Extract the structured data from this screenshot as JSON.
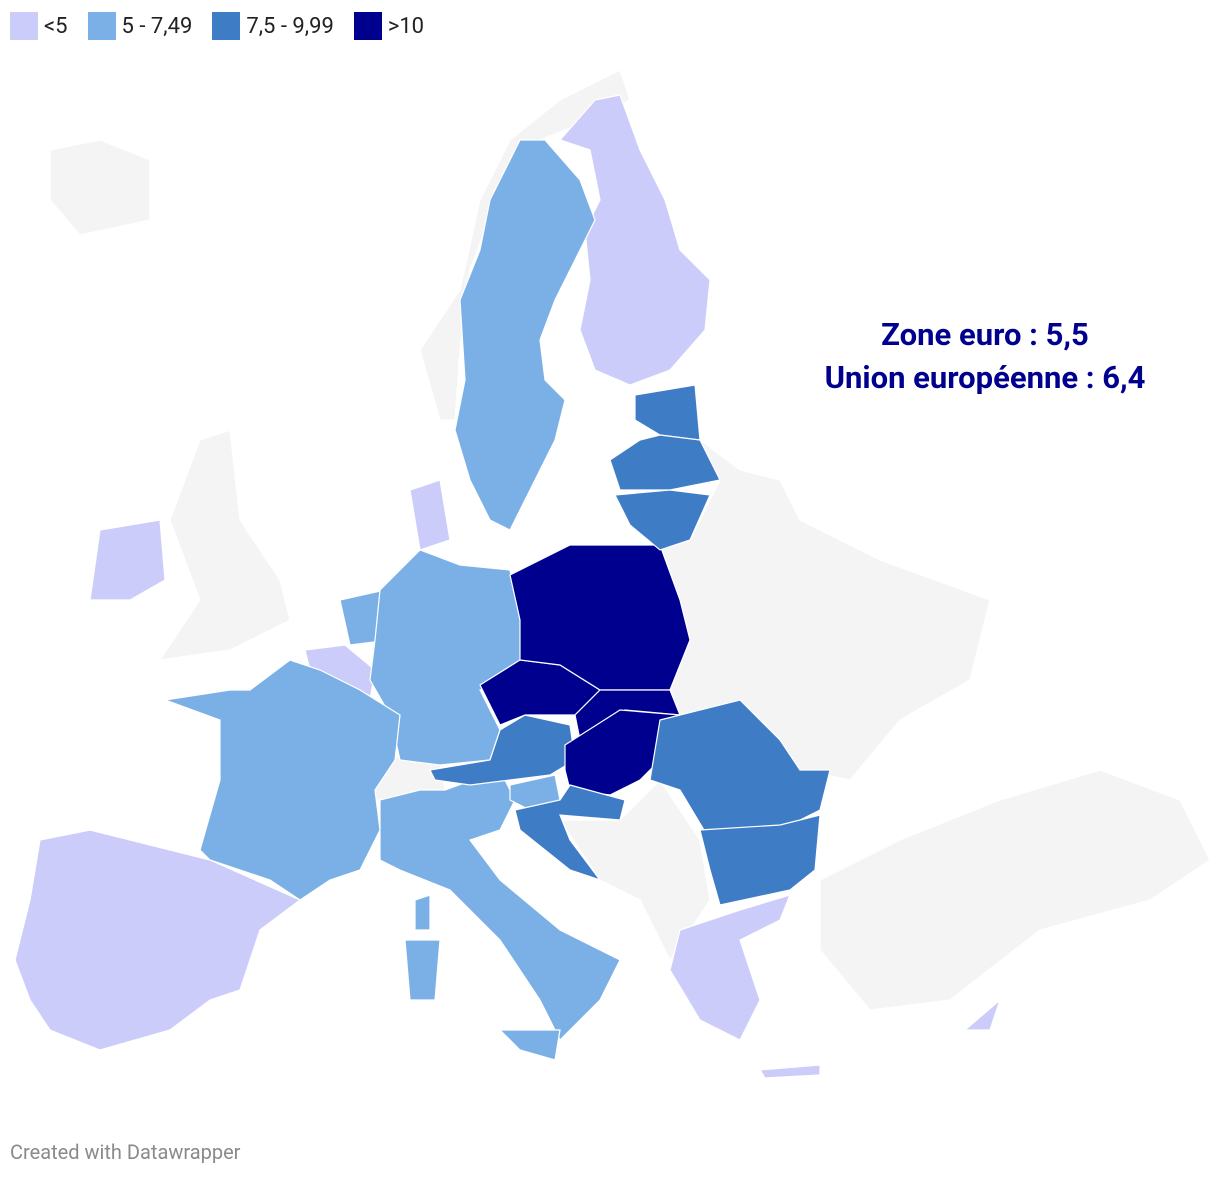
{
  "legend": [
    {
      "label": "<5",
      "color": "#ccccfa"
    },
    {
      "label": "5 - 7,49",
      "color": "#7bb0e6"
    },
    {
      "label": "7,5 - 9,99",
      "color": "#3f7cc6"
    },
    {
      "label": ">10",
      "color": "#00008f"
    }
  ],
  "annotation": [
    "Zone euro : 5,5",
    "Union européenne : 6,4"
  ],
  "footer": "Created with Datawrapper"
}
